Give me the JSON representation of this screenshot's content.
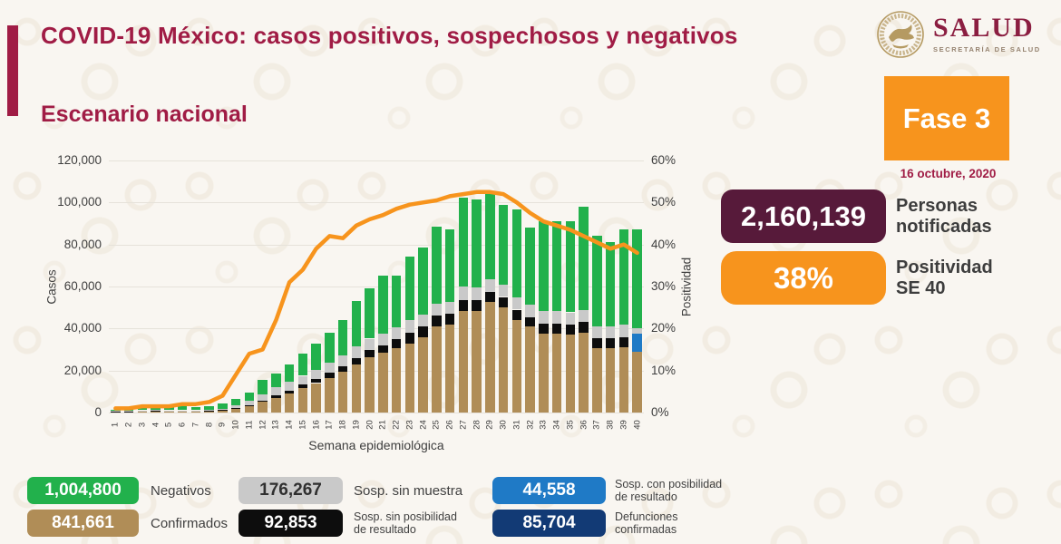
{
  "header": {
    "title": "COVID-19 México: casos positivos, sospechosos y negativos",
    "subtitle": "Escenario nacional",
    "logo_brand": "SALUD",
    "logo_sub": "SECRETARÍA DE SALUD"
  },
  "status": {
    "phase_label": "Fase 3",
    "date": "16 octubre, 2020",
    "notified_value": "2,160,139",
    "notified_label1": "Personas",
    "notified_label2": "notificadas",
    "positivity_value": "38%",
    "positivity_label1": "Positividad",
    "positivity_label2": "SE 40"
  },
  "colors": {
    "maroon": "#a01c45",
    "plum": "#571a3a",
    "orange": "#f7941d",
    "green": "#22b14c",
    "tan": "#b08d57",
    "gray": "#c9c9c9",
    "black": "#0d0d0d",
    "blue": "#1f7ac6",
    "navy": "#123a75"
  },
  "chart_data": {
    "type": "bar",
    "subtype": "stacked-bars-with-line",
    "xlabel": "Semana epidemiológica",
    "ylabel_left": "Casos",
    "ylabel_right": "Positividad",
    "ylim_left": [
      0,
      120000
    ],
    "ylim_right_pct": [
      0,
      60
    ],
    "yticks_left": [
      "0",
      "20,000",
      "40,000",
      "60,000",
      "80,000",
      "100,000",
      "120,000"
    ],
    "yticks_right": [
      "0%",
      "10%",
      "20%",
      "30%",
      "40%",
      "50%",
      "60%"
    ],
    "weeks": [
      1,
      2,
      3,
      4,
      5,
      6,
      7,
      8,
      9,
      10,
      11,
      12,
      13,
      14,
      15,
      16,
      17,
      18,
      19,
      20,
      21,
      22,
      23,
      24,
      25,
      26,
      27,
      28,
      29,
      30,
      31,
      32,
      33,
      34,
      35,
      36,
      37,
      38,
      39,
      40
    ],
    "series": [
      {
        "name": "Confirmados",
        "color": "#b08d57",
        "values": [
          400,
          500,
          600,
          700,
          600,
          600,
          600,
          700,
          1000,
          1800,
          3000,
          5000,
          7000,
          9000,
          11500,
          14000,
          16500,
          19500,
          23000,
          26500,
          28500,
          30500,
          33000,
          36000,
          41000,
          42000,
          48500,
          48500,
          52500,
          50000,
          44000,
          41000,
          37500,
          37500,
          37000,
          38000,
          30500,
          30500,
          31000,
          29000
        ]
      },
      {
        "name": "Sosp. sin posibilidad de resultado",
        "color": "#0d0d0d",
        "values": [
          100,
          100,
          100,
          100,
          100,
          100,
          100,
          100,
          200,
          300,
          500,
          800,
          1200,
          1500,
          1800,
          2000,
          2300,
          2600,
          3000,
          3200,
          3500,
          4500,
          5000,
          5000,
          5000,
          5000,
          5000,
          5000,
          5000,
          5000,
          5000,
          4500,
          5000,
          5000,
          5000,
          5000,
          5000,
          5000,
          5000,
          0
        ]
      },
      {
        "name": "Sosp. con posibilidad de resultado",
        "color": "#1f7ac6",
        "values": [
          0,
          0,
          0,
          0,
          0,
          0,
          0,
          0,
          0,
          0,
          0,
          0,
          0,
          0,
          0,
          0,
          0,
          0,
          0,
          0,
          0,
          0,
          0,
          0,
          0,
          0,
          0,
          0,
          0,
          0,
          0,
          0,
          0,
          0,
          0,
          0,
          0,
          0,
          0,
          8500
        ]
      },
      {
        "name": "Sosp. sin muestra",
        "color": "#c9c9c9",
        "values": [
          200,
          300,
          400,
          400,
          400,
          400,
          400,
          400,
          600,
          1200,
          2000,
          3000,
          3800,
          4000,
          4200,
          4500,
          4800,
          5000,
          5500,
          5500,
          5500,
          5700,
          5900,
          5800,
          5700,
          5800,
          6500,
          5900,
          5900,
          5800,
          5800,
          5700,
          5900,
          5900,
          5700,
          5700,
          5700,
          5700,
          5900,
          2800
        ]
      },
      {
        "name": "Negativos",
        "color": "#22b14c",
        "values": [
          800,
          1400,
          1800,
          2000,
          1800,
          1800,
          1600,
          1800,
          2500,
          3200,
          4000,
          6700,
          6500,
          8500,
          10500,
          12500,
          14400,
          16900,
          21500,
          23800,
          27500,
          24300,
          30300,
          31900,
          37000,
          34600,
          42200,
          41900,
          40500,
          38000,
          41900,
          36800,
          42600,
          42600,
          43300,
          49300,
          42800,
          39800,
          45100,
          46700
        ]
      }
    ],
    "line": {
      "name": "Positividad",
      "color": "#f7941d",
      "values_pct": [
        1,
        1,
        1.5,
        1.5,
        1.5,
        2,
        2,
        2.5,
        4,
        9,
        14,
        15,
        22,
        31,
        34,
        39,
        42,
        41.5,
        44.5,
        46,
        47,
        48.5,
        49.5,
        50,
        50.5,
        51.5,
        52,
        52.5,
        52.5,
        52,
        50,
        47.5,
        45.5,
        44.5,
        43.5,
        42,
        40.5,
        39,
        40,
        38
      ]
    }
  },
  "legend": {
    "items": [
      {
        "value": "1,004,800",
        "label1": "Negativos",
        "label2": "",
        "color": "#22b14c",
        "text": "#ffffff"
      },
      {
        "value": "176,267",
        "label1": "Sosp. sin muestra",
        "label2": "",
        "color": "#c9c9c9",
        "text": "#2f2f2f"
      },
      {
        "value": "44,558",
        "label1": "Sosp. con posibilidad",
        "label2": "de resultado",
        "color": "#1f7ac6",
        "text": "#ffffff"
      },
      {
        "value": "841,661",
        "label1": "Confirmados",
        "label2": "",
        "color": "#b08d57",
        "text": "#ffffff"
      },
      {
        "value": "92,853",
        "label1": "Sosp. sin posibilidad",
        "label2": "de resultado",
        "color": "#0d0d0d",
        "text": "#ffffff"
      },
      {
        "value": "85,704",
        "label1": "Defunciones",
        "label2": "confirmadas",
        "color": "#123a75",
        "text": "#ffffff"
      }
    ]
  }
}
